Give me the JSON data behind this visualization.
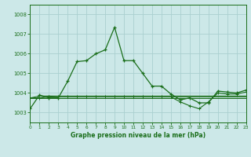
{
  "title": "Graphe pression niveau de la mer (hPa)",
  "bg_color": "#cce8e8",
  "grid_color": "#aad0d0",
  "line_color": "#1a6e1a",
  "xlim": [
    0,
    23
  ],
  "ylim": [
    1002.5,
    1008.5
  ],
  "yticks": [
    1003,
    1004,
    1005,
    1006,
    1007,
    1008
  ],
  "xtick_labels": [
    "0",
    "1",
    "2",
    "3",
    "4",
    "5",
    "6",
    "7",
    "8",
    "9",
    "10",
    "11",
    "12",
    "13",
    "14",
    "15",
    "16",
    "17",
    "18",
    "19",
    "20",
    "21",
    "22",
    "23"
  ],
  "series": [
    [
      1003.2,
      1003.9,
      1003.75,
      1003.75,
      1004.6,
      1005.6,
      1005.65,
      1006.0,
      1006.2,
      1007.35,
      1005.65,
      1005.65,
      1005.0,
      1004.35,
      1004.35,
      1003.95,
      1003.65,
      1003.75,
      1003.5,
      1003.5,
      1004.1,
      1004.05,
      1004.0,
      1004.15
    ],
    [
      1003.75,
      1003.75,
      1003.75,
      1003.75,
      1003.75,
      1003.75,
      1003.75,
      1003.75,
      1003.75,
      1003.75,
      1003.75,
      1003.75,
      1003.75,
      1003.75,
      1003.75,
      1003.75,
      1003.75,
      1003.75,
      1003.75,
      1003.75,
      1003.75,
      1003.75,
      1003.75,
      1003.75
    ],
    [
      1003.75,
      1003.75,
      1003.85,
      1003.85,
      1003.85,
      1003.85,
      1003.85,
      1003.85,
      1003.85,
      1003.85,
      1003.85,
      1003.85,
      1003.85,
      1003.85,
      1003.85,
      1003.85,
      1003.85,
      1003.85,
      1003.85,
      1003.85,
      1003.85,
      1003.85,
      1003.85,
      1003.85
    ],
    [
      1003.75,
      1003.75,
      1003.8,
      1003.8,
      1003.8,
      1003.8,
      1003.8,
      1003.8,
      1003.8,
      1003.8,
      1003.8,
      1003.8,
      1003.8,
      1003.8,
      1003.8,
      1003.8,
      1003.55,
      1003.35,
      1003.2,
      1003.55,
      1004.0,
      1003.95,
      1003.95,
      1004.05
    ],
    [
      1003.75,
      1003.85,
      1003.85,
      1003.8,
      1003.8,
      1003.8,
      1003.8,
      1003.8,
      1003.8,
      1003.8,
      1003.8,
      1003.8,
      1003.8,
      1003.8,
      1003.8,
      1003.8,
      1003.8,
      1003.8,
      1003.8,
      1003.8,
      1003.8,
      1003.8,
      1003.8,
      1003.8
    ]
  ]
}
